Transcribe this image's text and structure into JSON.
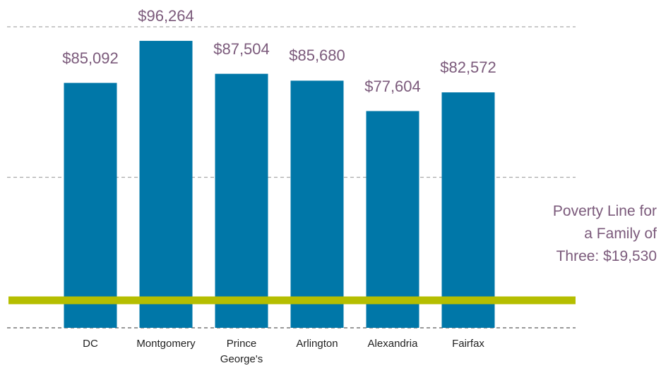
{
  "chart_data": {
    "type": "bar",
    "categories": [
      "DC",
      "Montgomery",
      "Prince George's",
      "Arlington",
      "Alexandria",
      "Fairfax"
    ],
    "values": [
      85092,
      96264,
      87504,
      85680,
      77604,
      82572
    ],
    "value_labels": [
      "$85,092",
      "$96,264",
      "$87,504",
      "$85,680",
      "$77,604",
      "$82,572"
    ],
    "color": "#0077a8",
    "ylim": [
      20000,
      100000
    ],
    "yticks": [
      20000,
      60000,
      100000
    ],
    "grid": true,
    "annotation": [
      "Poverty Line for",
      "a Family of",
      "Three: $19,530"
    ],
    "annotation_color": "#b5be00"
  }
}
